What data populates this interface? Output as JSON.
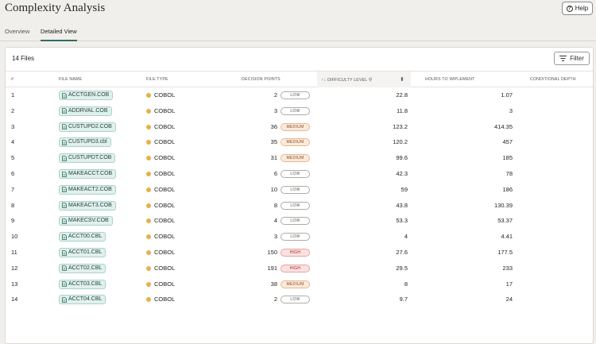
{
  "header": {
    "title": "Complexity Analysis",
    "help_label": "Help"
  },
  "tabs": [
    {
      "label": "Overview",
      "active": false
    },
    {
      "label": "Detailed View",
      "active": true
    }
  ],
  "panel": {
    "files_count": "14 Files",
    "filter_label": "Filter"
  },
  "table": {
    "columns": {
      "index": "#",
      "file_name": "FILE NAME",
      "file_type": "FILE TYPE",
      "decision_points": "DECISION POINTS",
      "difficulty_level": "DIFFICULTY LEVEL",
      "hours": "HOURS TO IMPLEMENT",
      "conditional_depth": "CONDITIONAL DEPTH"
    },
    "sort_column": "difficulty_level",
    "dot_color": "#e8b04b",
    "rows": [
      {
        "n": "1",
        "file": "ACCTGEN.COB",
        "type": "COBOL",
        "dp": "2",
        "level": "LOW",
        "difficulty": "22.8",
        "hours": "1.07"
      },
      {
        "n": "2",
        "file": "ADDRVAL.COB",
        "type": "COBOL",
        "dp": "3",
        "level": "LOW",
        "difficulty": "11.8",
        "hours": "3"
      },
      {
        "n": "3",
        "file": "CUSTUPD2.COB",
        "type": "COBOL",
        "dp": "36",
        "level": "MEDIUM",
        "difficulty": "123.2",
        "hours": "414.35"
      },
      {
        "n": "4",
        "file": "CUSTUPD3.cbl",
        "type": "COBOL",
        "dp": "35",
        "level": "MEDIUM",
        "difficulty": "120.2",
        "hours": "457"
      },
      {
        "n": "5",
        "file": "CUSTUPDT.COB",
        "type": "COBOL",
        "dp": "31",
        "level": "MEDIUM",
        "difficulty": "99.6",
        "hours": "185"
      },
      {
        "n": "6",
        "file": "MAKEACCT.COB",
        "type": "COBOL",
        "dp": "6",
        "level": "LOW",
        "difficulty": "42.3",
        "hours": "78"
      },
      {
        "n": "7",
        "file": "MAKEACT2.COB",
        "type": "COBOL",
        "dp": "10",
        "level": "LOW",
        "difficulty": "59",
        "hours": "186"
      },
      {
        "n": "8",
        "file": "MAKEACT3.COB",
        "type": "COBOL",
        "dp": "8",
        "level": "LOW",
        "difficulty": "43.8",
        "hours": "130.39"
      },
      {
        "n": "9",
        "file": "MAKECSV.COB",
        "type": "COBOL",
        "dp": "4",
        "level": "LOW",
        "difficulty": "53.3",
        "hours": "53.37"
      },
      {
        "n": "10",
        "file": "ACCT00.CBL",
        "type": "COBOL",
        "dp": "3",
        "level": "LOW",
        "difficulty": "4",
        "hours": "4.41"
      },
      {
        "n": "11",
        "file": "ACCT01.CBL",
        "type": "COBOL",
        "dp": "150",
        "level": "HIGH",
        "difficulty": "27.6",
        "hours": "177.5"
      },
      {
        "n": "12",
        "file": "ACCT02.CBL",
        "type": "COBOL",
        "dp": "191",
        "level": "HIGH",
        "difficulty": "29.5",
        "hours": "233"
      },
      {
        "n": "13",
        "file": "ACCT03.CBL",
        "type": "COBOL",
        "dp": "38",
        "level": "MEDIUM",
        "difficulty": "8",
        "hours": "17"
      },
      {
        "n": "14",
        "file": "ACCT04.CBL",
        "type": "COBOL",
        "dp": "2",
        "level": "LOW",
        "difficulty": "9.7",
        "hours": "24"
      }
    ]
  }
}
